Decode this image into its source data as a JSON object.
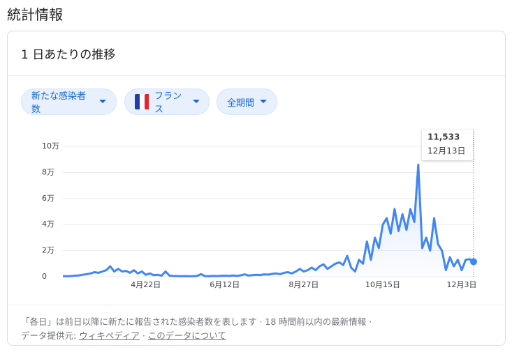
{
  "header": {
    "title": "統計情報"
  },
  "card": {
    "title": "1 日あたりの推移",
    "chips": [
      "新たな感染者数",
      "フランス",
      "全期間"
    ],
    "footer": {
      "note": "「各日」は前日以降に新たに報告された感染者数を表します · 18 時間前以内の最新情報 ·",
      "source_label": "データ提供元:",
      "source_link": "ウィキペディア",
      "separator": "·",
      "about_link": "このデータについて"
    }
  },
  "chart_data": {
    "type": "line",
    "color": "#4285f4",
    "grid": true,
    "categories": [
      null,
      null,
      null,
      null,
      null,
      null,
      null,
      null,
      null,
      null,
      null,
      null,
      null,
      null,
      null,
      null,
      null,
      null,
      null,
      null,
      null,
      "4月22日",
      null,
      null,
      null,
      null,
      null,
      null,
      null,
      null,
      null,
      null,
      null,
      null,
      null,
      null,
      null,
      null,
      null,
      null,
      null,
      "6月12日",
      null,
      null,
      null,
      null,
      null,
      null,
      null,
      null,
      null,
      null,
      null,
      null,
      null,
      null,
      null,
      null,
      null,
      null,
      null,
      "8月27日",
      null,
      null,
      null,
      null,
      null,
      null,
      null,
      null,
      null,
      null,
      null,
      null,
      null,
      null,
      null,
      null,
      null,
      null,
      null,
      "10月15日",
      null,
      null,
      null,
      null,
      null,
      null,
      null,
      null,
      null,
      null,
      null,
      null,
      null,
      null,
      null,
      null,
      null,
      null,
      null,
      "12月3日",
      null,
      null,
      null
    ],
    "values": [
      300,
      400,
      500,
      800,
      1000,
      1500,
      2000,
      2500,
      3500,
      3000,
      4000,
      5000,
      8000,
      4000,
      6000,
      4000,
      4500,
      3000,
      5000,
      2500,
      4000,
      1500,
      2500,
      1200,
      1500,
      800,
      4000,
      800,
      600,
      500,
      400,
      500,
      300,
      400,
      600,
      2000,
      500,
      400,
      600,
      500,
      700,
      800,
      600,
      900,
      700,
      1000,
      1800,
      900,
      1200,
      1500,
      1300,
      1800,
      1600,
      2200,
      2500,
      2000,
      3000,
      3500,
      2500,
      4000,
      6000,
      4000,
      5000,
      7000,
      5000,
      8000,
      9500,
      6000,
      8000,
      10000,
      11000,
      9000,
      16000,
      7000,
      4000,
      13000,
      10000,
      27000,
      13000,
      30000,
      22000,
      40000,
      45000,
      33000,
      52000,
      35000,
      48000,
      36000,
      52000,
      42000,
      86000,
      22000,
      30000,
      20000,
      45000,
      25000,
      20000,
      5000,
      15000,
      8000,
      13000,
      5000,
      13000,
      13500,
      11533
    ],
    "ylim": [
      0,
      100000
    ],
    "yticks": [
      0,
      {
        "value": 20000,
        "label": "2万"
      },
      {
        "value": 40000,
        "label": "4万"
      },
      {
        "value": 60000,
        "label": "6万"
      },
      {
        "value": 80000,
        "label": "8万"
      },
      {
        "value": 100000,
        "label": "10万"
      }
    ],
    "tooltip": {
      "label": "11,533",
      "date": "12月13日"
    }
  }
}
